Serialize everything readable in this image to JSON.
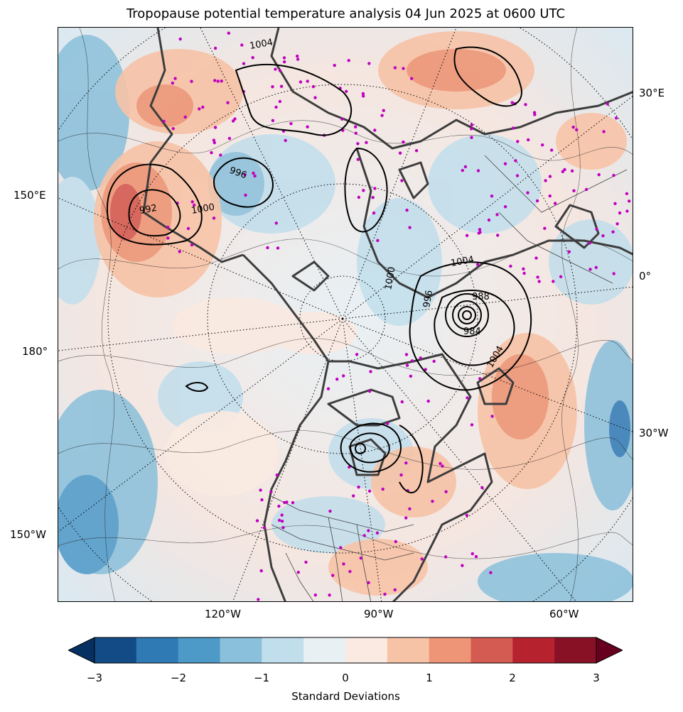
{
  "title": "Tropopause potential temperature analysis 04 Jun 2025 at 0600 UTC",
  "lon_labels": {
    "e30": "30°E",
    "e150": "150°E",
    "zero": "0°",
    "d180": "180°",
    "w30": "30°W",
    "w150": "150°W",
    "w120": "120°W",
    "w90": "90°W",
    "w60": "60°W"
  },
  "isobar_labels": [
    "1004",
    "1000",
    "996",
    "992",
    "988",
    "984",
    "1004",
    "1000",
    "996",
    "1004"
  ],
  "colorbar": {
    "ticks": [
      "−3",
      "−2",
      "−1",
      "0",
      "1",
      "2",
      "3"
    ],
    "label": "Standard Deviations",
    "colors": [
      "#053061",
      "#134b87",
      "#2f79b5",
      "#4d99c8",
      "#8ac0db",
      "#c1deec",
      "#e8f0f4",
      "#faeae1",
      "#f7c3a7",
      "#ed9576",
      "#d45b51",
      "#b7222f",
      "#891126",
      "#67001f"
    ]
  },
  "colors": {
    "land_outline": "#3d3d3d",
    "station_marker": "#c000c0",
    "pressure_contour": "#000000",
    "graticule": "#000000"
  }
}
